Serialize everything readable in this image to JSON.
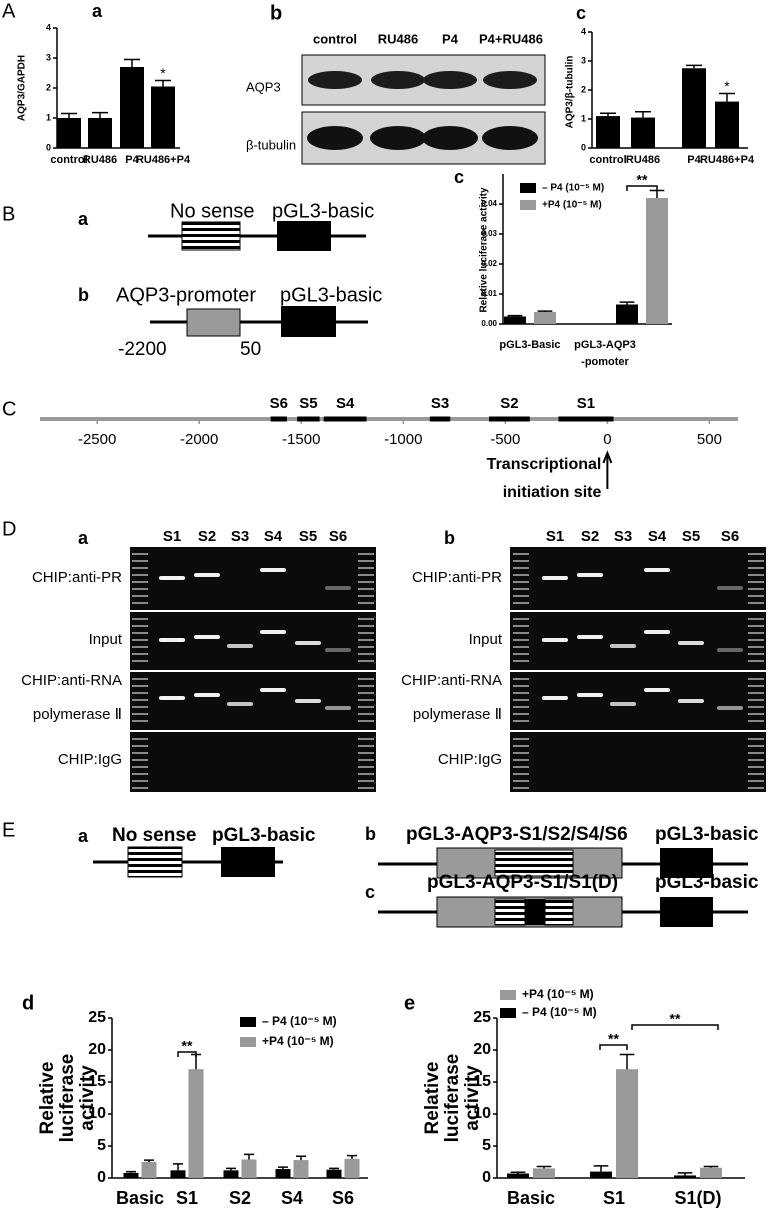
{
  "panel_A": {
    "label": "A",
    "blot": {
      "title": "b",
      "lanes": [
        "control",
        "RU486",
        "P4",
        "P4+RU486"
      ],
      "rows": [
        "AQP3",
        "β-tubulin"
      ]
    }
  },
  "panel_B": {
    "label": "B",
    "constructs": [
      {
        "letter": "a",
        "insert": "No sense",
        "vector": "pGL3-basic"
      },
      {
        "letter": "b",
        "insert": "AQP3-promoter",
        "vector": "pGL3-basic",
        "start": -2200,
        "end": 50
      }
    ]
  },
  "panel_C": {
    "label": "C"
  },
  "panel_D": {
    "label": "D",
    "gels": [
      "a",
      "b"
    ],
    "lanes": [
      "S1",
      "S2",
      "S3",
      "S4",
      "S5",
      "S6"
    ],
    "rows": [
      [
        "CHIP:anti-PR"
      ],
      [
        "Input"
      ],
      [
        "CHIP:anti-RNA",
        "polymerase Ⅱ"
      ],
      [
        "CHIP:IgG"
      ]
    ]
  },
  "panel_E": {
    "label": "E",
    "constructs": [
      {
        "letter": "a",
        "insert": "No sense",
        "vector": "pGL3-basic"
      },
      {
        "letter": "b",
        "insert": "pGL3-AQP3-S1/S2/S4/S6",
        "vector": "pGL3-basic"
      },
      {
        "letter": "c",
        "insert": "pGL3-AQP3-S1/S1(D)",
        "vector": "pGL3-basic"
      }
    ]
  },
  "chart_data": [
    {
      "type": "bar",
      "title": "a",
      "ylabel": "AQP3/GAPDH",
      "categories": [
        "control",
        "RU486",
        "P4",
        "RU486+P4"
      ],
      "values": [
        1.0,
        1.0,
        2.7,
        2.05
      ],
      "errors": [
        0.15,
        0.18,
        0.25,
        0.2
      ],
      "color": "#000000",
      "ylim": [
        0,
        4
      ],
      "yticks": [
        0,
        1,
        2,
        3,
        4
      ],
      "annotations": [
        "*"
      ]
    },
    {
      "type": "bar",
      "title": "c",
      "ylabel": "AQP3/β-tubulin",
      "categories": [
        "control",
        "RU486",
        "P4",
        "RU486+P4"
      ],
      "values": [
        1.1,
        1.05,
        2.75,
        1.6
      ],
      "errors": [
        0.1,
        0.2,
        0.1,
        0.28
      ],
      "color": "#000000",
      "ylim": [
        0,
        4
      ],
      "yticks": [
        0,
        1,
        2,
        3,
        4
      ],
      "annotations": [
        "*"
      ]
    },
    {
      "type": "bar",
      "title": "c",
      "ylabel": "Relative luciferase activity",
      "categories": [
        "pGL3-Basic",
        "pGL3-AQP3 -pomoter"
      ],
      "series": [
        {
          "name": "– P4 (10⁻⁵ M)",
          "color": "#000000",
          "values": [
            0.0025,
            0.0065
          ],
          "errors": [
            0.0003,
            0.0008
          ]
        },
        {
          "name": "+P4 (10⁻⁵ M)",
          "color": "#999999",
          "values": [
            0.004,
            0.042
          ],
          "errors": [
            0.0003,
            0.0025
          ]
        }
      ],
      "ylim": [
        0,
        0.05
      ],
      "yticks": [
        {
          "value": 0,
          "label": "0.00"
        },
        0.01,
        0.02,
        0.03,
        0.04
      ],
      "annotations": [
        "**"
      ]
    },
    {
      "type": "segments",
      "xlim": [
        -2780,
        640
      ],
      "xticks": [
        -2500,
        -2000,
        -1500,
        -1000,
        -500,
        0,
        500
      ],
      "segments": [
        {
          "name": "S6",
          "range": [
            -1650,
            -1570
          ]
        },
        {
          "name": "S5",
          "range": [
            -1520,
            -1410
          ]
        },
        {
          "name": "S4",
          "range": [
            -1390,
            -1180
          ]
        },
        {
          "name": "S3",
          "range": [
            -870,
            -770
          ]
        },
        {
          "name": "S2",
          "range": [
            -580,
            -380
          ]
        },
        {
          "name": "S1",
          "range": [
            -240,
            30
          ]
        }
      ],
      "annotation": [
        "Transcriptional",
        "initiation site"
      ]
    },
    {
      "type": "bar",
      "title": "d",
      "ylabel": "Relative luciferase activity",
      "categories": [
        "Basic",
        "S1",
        "S2",
        "S4",
        "S6"
      ],
      "series": [
        {
          "name": "– P4 (10⁻⁵ M)",
          "color": "#000000",
          "values": [
            0.8,
            1.2,
            1.2,
            1.4,
            1.3
          ],
          "errors": [
            0.2,
            1.0,
            0.3,
            0.3,
            0.2
          ]
        },
        {
          "name": "+P4 (10⁻⁵ M)",
          "color": "#999999",
          "values": [
            2.5,
            17,
            2.9,
            2.8,
            3.0
          ],
          "errors": [
            0.3,
            2.3,
            0.8,
            0.6,
            0.5
          ]
        }
      ],
      "ylim": [
        0,
        25
      ],
      "yticks": [
        0,
        5,
        10,
        15,
        20,
        25
      ],
      "annotations": [
        "**"
      ]
    },
    {
      "type": "bar",
      "title": "e",
      "ylabel": "Relative luciferase activity",
      "categories": [
        "Basic",
        "S1",
        "S1(D)"
      ],
      "series": [
        {
          "name": "+P4 (10⁻⁵ M)",
          "color": "#999999",
          "values": [
            1.5,
            17,
            1.6
          ],
          "errors": [
            0.3,
            2.3,
            0.2
          ]
        },
        {
          "name": "– P4 (10⁻⁵ M)",
          "color": "#000000",
          "values": [
            0.7,
            1.0,
            0.4
          ],
          "errors": [
            0.2,
            0.9,
            0.4
          ]
        }
      ],
      "ylim": [
        0,
        25
      ],
      "yticks": [
        0,
        5,
        10,
        15,
        20,
        25
      ],
      "annotations": [
        "**",
        "**"
      ]
    }
  ]
}
